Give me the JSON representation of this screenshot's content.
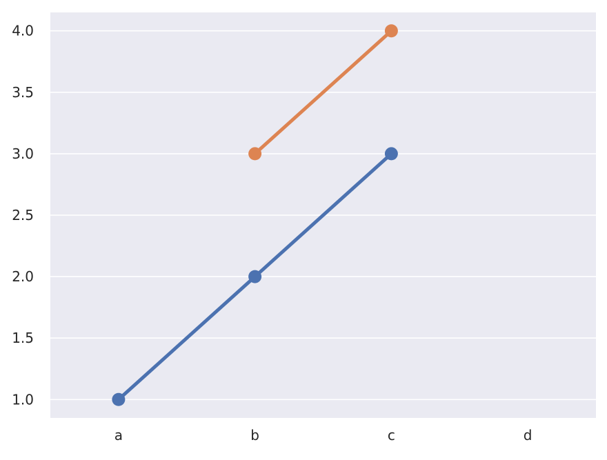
{
  "chart_data": {
    "type": "line",
    "title": "",
    "xlabel": "",
    "ylabel": "",
    "categories": [
      "a",
      "b",
      "c",
      "d"
    ],
    "ylim": [
      0.85,
      4.15
    ],
    "yticks": [
      "1.0",
      "1.5",
      "2.0",
      "2.5",
      "3.0",
      "3.5",
      "4.0"
    ],
    "grid": true,
    "legend": "none",
    "background_color": "#eaeaf2",
    "series": [
      {
        "color": "#4c72b0",
        "values": [
          1.0,
          2.0,
          3.0,
          null
        ]
      },
      {
        "color": "#dd8452",
        "values": [
          null,
          3.0,
          4.0,
          null
        ]
      }
    ]
  }
}
